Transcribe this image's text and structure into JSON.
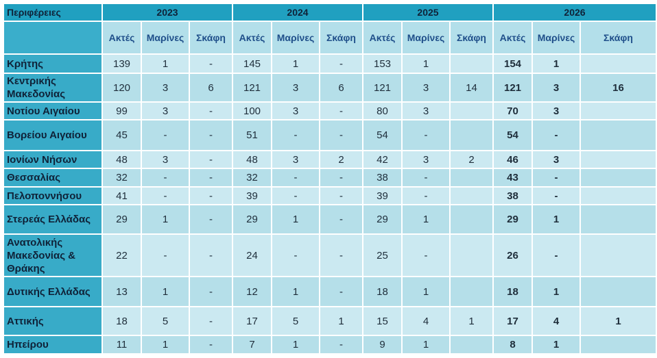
{
  "table": {
    "header": [
      "Περιφέρειες",
      "2023",
      "2024",
      "2025",
      "2026"
    ],
    "subheaders": [
      "Ακτές",
      "Μαρίνες",
      "Σκάφη",
      "Ακτές",
      "Μαρίνες",
      "Σκάφη",
      "Ακτές",
      "Μαρίνες",
      "Σκάφη",
      "Ακτές",
      "Μαρίνες",
      "Σκάφη"
    ],
    "rows": [
      [
        "Κρήτης",
        139,
        1,
        "-",
        145,
        1,
        "-",
        153,
        1,
        null,
        154,
        1,
        null
      ],
      [
        "Κεντρικής Μακεδονίας",
        120,
        3,
        6,
        121,
        3,
        6,
        121,
        3,
        14,
        121,
        3,
        16
      ],
      [
        "Νοτίου Αιγαίου",
        99,
        3,
        "-",
        100,
        3,
        "-",
        80,
        3,
        null,
        70,
        3,
        null
      ],
      [
        "Βορείου Αιγαίου",
        45,
        "-",
        "-",
        51,
        "-",
        "-",
        54,
        "-",
        null,
        54,
        "-",
        null
      ],
      [
        "Ιονίων Νήσων",
        48,
        3,
        "-",
        48,
        3,
        2,
        42,
        3,
        2,
        46,
        3,
        null
      ],
      [
        "Θεσσαλίας",
        32,
        "-",
        "-",
        32,
        "-",
        "-",
        38,
        "-",
        null,
        43,
        "-",
        null
      ],
      [
        "Πελοποννήσου",
        41,
        "-",
        "-",
        39,
        "-",
        "-",
        39,
        "-",
        null,
        38,
        "-",
        null
      ],
      [
        "Στερεάς Ελλάδας",
        29,
        1,
        "-",
        29,
        1,
        "-",
        29,
        1,
        null,
        29,
        1,
        null
      ],
      [
        "Ανατολικής Μακεδονίας & Θράκης",
        22,
        "-",
        "-",
        24,
        "-",
        "-",
        25,
        "-",
        null,
        26,
        "-",
        null
      ],
      [
        "Δυτικής Ελλάδας",
        13,
        1,
        "-",
        12,
        1,
        "-",
        18,
        1,
        null,
        18,
        1,
        null
      ],
      [
        "Αττικής",
        18,
        5,
        "-",
        17,
        5,
        1,
        15,
        4,
        1,
        17,
        4,
        1
      ],
      [
        "Ηπείρου",
        11,
        1,
        "-",
        7,
        1,
        "-",
        9,
        1,
        null,
        8,
        1,
        null
      ]
    ]
  }
}
